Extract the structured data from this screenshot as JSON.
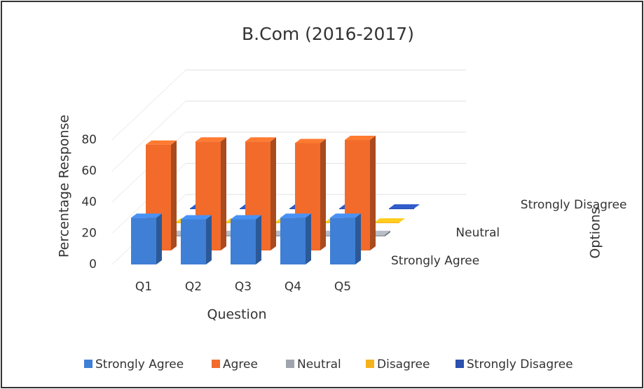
{
  "chart_data": {
    "type": "bar3d",
    "title": "B.Com (2016-2017)",
    "x_label": "Question",
    "y_label": "Percentage Response",
    "z_label": "Options",
    "categories": [
      "Q1",
      "Q2",
      "Q3",
      "Q4",
      "Q5"
    ],
    "series": [
      {
        "name": "Strongly Agree",
        "color": "#3f7fd6",
        "values": [
          30,
          29,
          29,
          30,
          30
        ]
      },
      {
        "name": "Agree",
        "color": "#f26b2b",
        "values": [
          68,
          70,
          70,
          69,
          71
        ]
      },
      {
        "name": "Neutral",
        "color": "#a0a4ae",
        "values": [
          1,
          1,
          1,
          1,
          1
        ]
      },
      {
        "name": "Disagree",
        "color": "#f5b21c",
        "values": [
          0,
          0,
          0,
          0,
          0
        ]
      },
      {
        "name": "Strongly Disagree",
        "color": "#2a50b0",
        "values": [
          0,
          0,
          0,
          0,
          0
        ]
      }
    ],
    "ylim": [
      0,
      80
    ],
    "yticks": [
      0,
      20,
      40,
      60,
      80
    ],
    "grid": true,
    "legend": "bottom"
  }
}
